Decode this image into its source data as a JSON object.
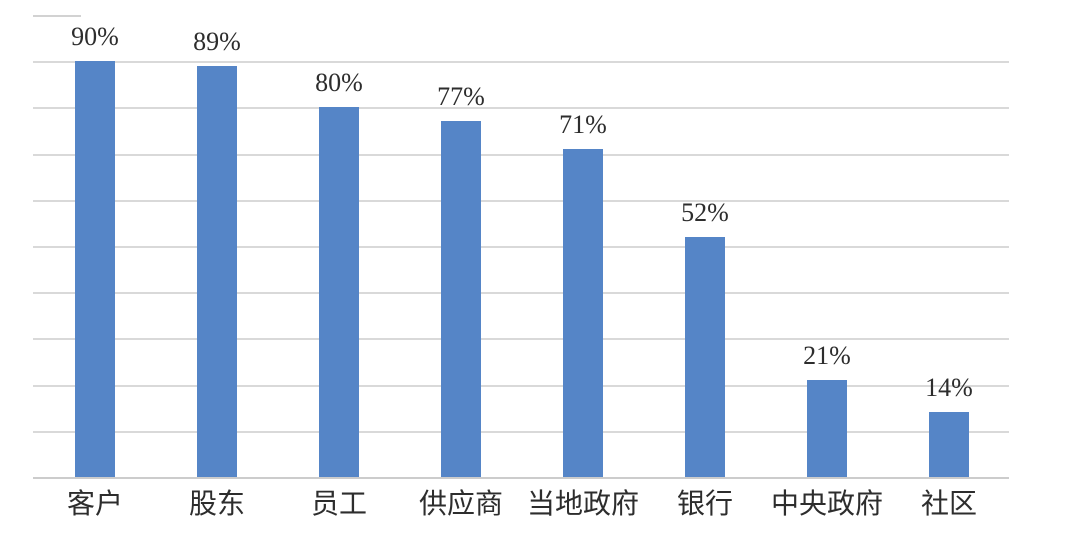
{
  "chart_data": {
    "type": "bar",
    "title": "",
    "xlabel": "",
    "ylabel": "",
    "categories": [
      "客户",
      "股东",
      "员工",
      "供应商",
      "当地政府",
      "银行",
      "中央政府",
      "社区"
    ],
    "values": [
      90,
      89,
      80,
      77,
      71,
      52,
      21,
      14
    ],
    "value_labels": [
      "90%",
      "89%",
      "80%",
      "77%",
      "71%",
      "52%",
      "21%",
      "14%"
    ],
    "ylim": [
      0,
      100
    ],
    "grid": "horizontal",
    "gridline_step_pct": 10,
    "legend": "none",
    "axis_tick_labels": "none",
    "bar_color": "#5585c7"
  },
  "colors": {
    "background": "#ffffff",
    "bar": "#5585c7",
    "gridline": "#d9d9d9",
    "axis": "#cccccc",
    "text": "#2d2d2d"
  }
}
